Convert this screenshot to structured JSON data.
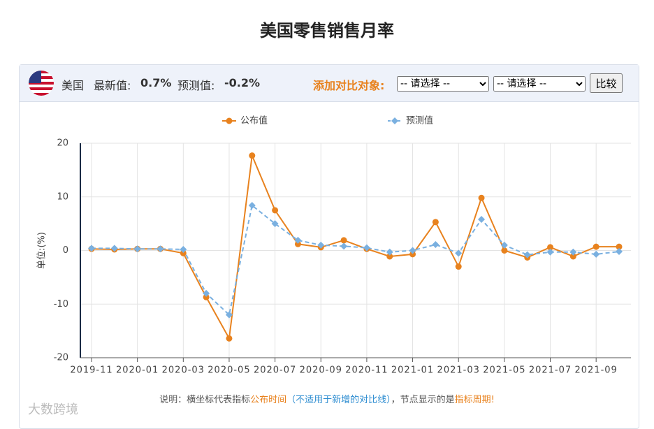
{
  "header": {
    "title": "美国零售销售月率"
  },
  "panel": {
    "country": "美国",
    "latest_label": "最新值:",
    "latest_value": "0.7%",
    "forecast_label": "预测值:",
    "forecast_value": "-0.2%",
    "compare_label": "添加对比对象:",
    "selects": [
      "-- 请选择 --",
      "-- 请选择 --"
    ],
    "button": "比较"
  },
  "chart_data": {
    "type": "line",
    "y_label": "单位:(%)",
    "categories": [
      "2019-11",
      null,
      "2020-01",
      null,
      "2020-03",
      null,
      "2020-05",
      null,
      "2020-07",
      null,
      "2020-09",
      null,
      "2020-11",
      null,
      "2021-01",
      null,
      "2021-03",
      null,
      "2021-05",
      null,
      "2021-07",
      null,
      "2021-09",
      null
    ],
    "series": [
      {
        "name": "公布值",
        "color": "#e8821e",
        "marker": "circle",
        "dashed": false,
        "values": [
          0.3,
          0.2,
          0.3,
          0.3,
          -0.5,
          -8.7,
          -16.4,
          17.7,
          7.5,
          1.2,
          0.6,
          1.9,
          0.3,
          -1.1,
          -0.7,
          5.3,
          -3.0,
          9.8,
          0.0,
          -1.3,
          0.6,
          -1.1,
          0.7,
          0.7
        ]
      },
      {
        "name": "预测值",
        "color": "#7ab0e0",
        "marker": "diamond",
        "dashed": true,
        "values": [
          0.4,
          0.4,
          0.3,
          0.3,
          0.2,
          -8.0,
          -12.0,
          8.4,
          5.0,
          1.9,
          1.0,
          0.8,
          0.5,
          -0.3,
          0.0,
          1.1,
          -0.5,
          5.8,
          1.0,
          -0.8,
          -0.3,
          -0.3,
          -0.7,
          -0.2
        ]
      }
    ],
    "ylim": [
      -20,
      20
    ],
    "yticks": [
      -20,
      -10,
      0,
      10,
      20
    ],
    "grid": true
  },
  "note": {
    "parts": [
      {
        "text": "说明：横坐标代表指标",
        "color": "#555555"
      },
      {
        "text": "公布时间",
        "color": "#e8821e"
      },
      {
        "text": "（不适用于新增的对比线）",
        "color": "#2a8bd0"
      },
      {
        "text": "，节点显示的是",
        "color": "#555555"
      },
      {
        "text": "指标周期!",
        "color": "#e8821e"
      }
    ]
  },
  "watermark": "大数跨境"
}
